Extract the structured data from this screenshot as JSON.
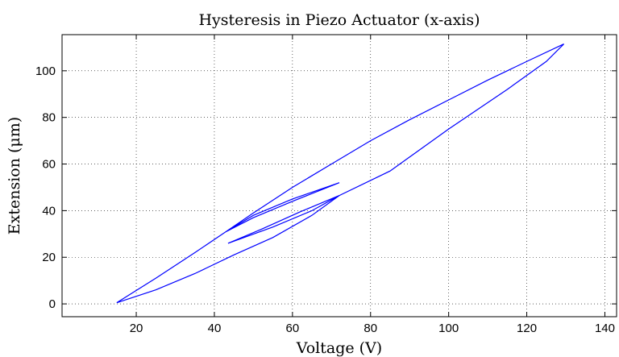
{
  "chart_data": {
    "type": "line",
    "title": "Hysteresis in Piezo Actuator (x-axis)",
    "xlabel": "Voltage (V)",
    "ylabel": "Extension (μm)",
    "x": [
      15,
      25,
      35,
      45,
      55,
      65,
      72,
      85,
      100,
      115,
      125,
      129.5,
      120,
      110,
      100,
      90,
      80,
      70,
      60,
      50,
      43,
      50,
      60,
      72,
      60,
      50,
      43,
      35,
      25,
      15,
      null,
      43.5,
      55,
      65,
      72,
      62,
      52,
      43.5
    ],
    "series": [
      {
        "name": "Extension",
        "color": "#0000ff",
        "values": [
          0.5,
          6,
          13,
          21,
          28.5,
          38,
          46.5,
          57,
          75,
          92,
          104,
          111.5,
          104,
          96,
          87.5,
          79,
          70,
          60,
          50,
          39,
          31,
          37,
          44,
          52,
          45,
          38,
          31,
          22,
          11,
          0.5,
          null,
          26,
          33,
          40,
          46.5,
          39.5,
          32,
          26
        ]
      }
    ],
    "xlim": [
      1,
      143
    ],
    "ylim": [
      -5.5,
      115.5
    ],
    "xticks": [
      20,
      40,
      60,
      80,
      100,
      120,
      140
    ],
    "yticks": [
      0,
      20,
      40,
      60,
      80,
      100
    ],
    "grid": true
  }
}
